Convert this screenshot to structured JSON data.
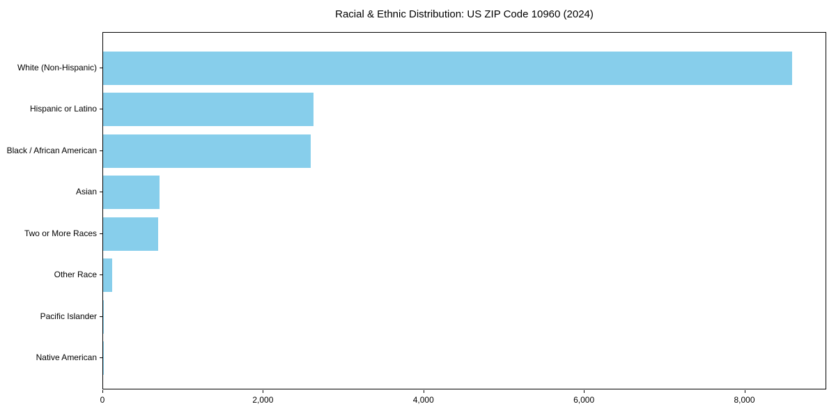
{
  "chart_data": {
    "type": "bar",
    "orientation": "horizontal",
    "title": "Racial & Ethnic Distribution: US ZIP Code 10960 (2024)",
    "categories": [
      "White (Non-Hispanic)",
      "Hispanic or Latino",
      "Black / African American",
      "Asian",
      "Two or More Races",
      "Other Race",
      "Pacific Islander",
      "Native American"
    ],
    "values": [
      8590,
      2620,
      2590,
      700,
      685,
      110,
      12,
      2
    ],
    "xlabel": "",
    "ylabel": "",
    "xlim": [
      0,
      9020
    ],
    "xticks": [
      0,
      2000,
      4000,
      6000,
      8000
    ],
    "xtick_labels": [
      "0",
      "2,000",
      "4,000",
      "6,000",
      "8,000"
    ],
    "bar_color": "#87CEEB",
    "axis_color": "#000000",
    "grid": false,
    "legend": null
  }
}
